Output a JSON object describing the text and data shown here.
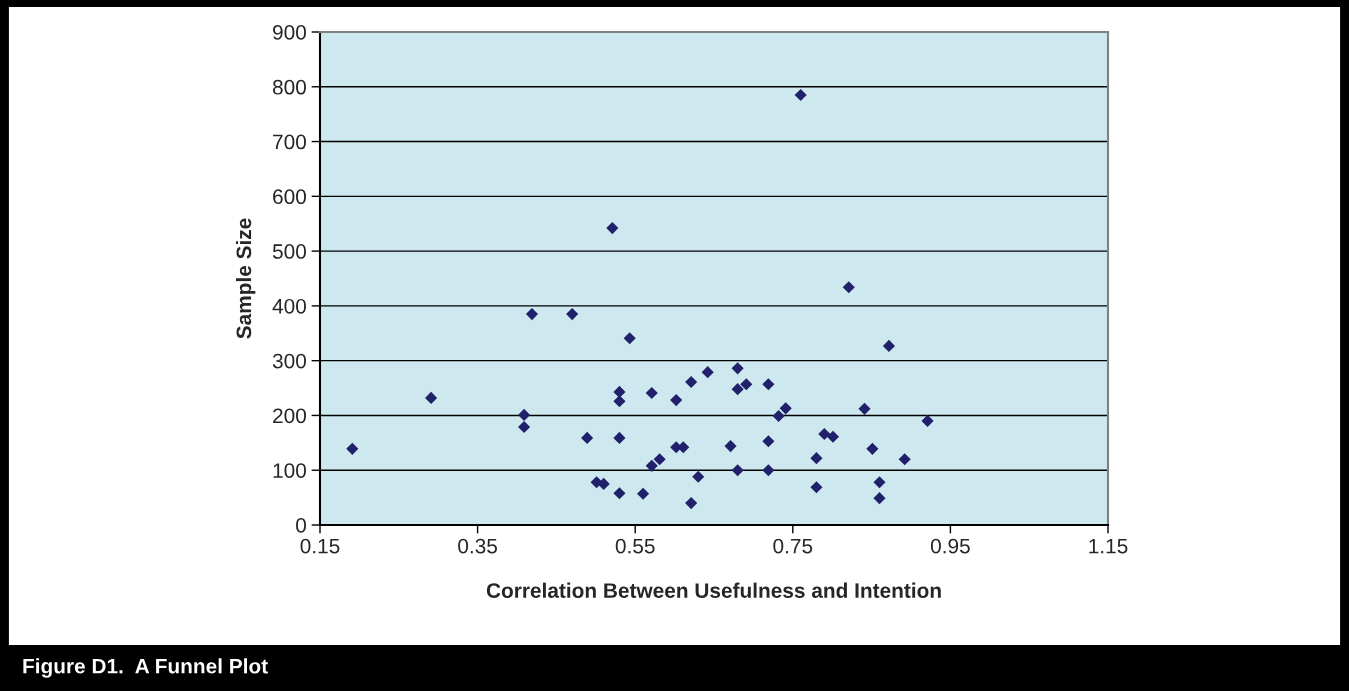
{
  "chart_data": {
    "type": "scatter",
    "xlabel": "Correlation Between Usefulness and Intention",
    "ylabel": "Sample Size",
    "annotations": [
      "Figure D1.  A Funnel Plot"
    ],
    "series": [
      {
        "color": "#20206b",
        "marker": "diamond",
        "x": [
          0.191,
          0.291,
          0.409,
          0.409,
          0.419,
          0.47,
          0.521,
          0.543,
          0.53,
          0.53,
          0.571,
          0.602,
          0.621,
          0.642,
          0.489,
          0.53,
          0.602,
          0.611,
          0.581,
          0.571,
          0.63,
          0.501,
          0.51,
          0.53,
          0.56,
          0.621,
          0.76,
          0.821,
          0.872,
          0.68,
          0.68,
          0.691,
          0.719,
          0.741,
          0.732,
          0.841,
          0.921,
          0.671,
          0.719,
          0.79,
          0.801,
          0.851,
          0.78,
          0.892,
          0.68,
          0.719,
          0.78,
          0.86,
          0.86
        ],
        "values": [
          139,
          232,
          201,
          179,
          385,
          385,
          542,
          341,
          243,
          226,
          241,
          228,
          261,
          279,
          159,
          159,
          142,
          142,
          120,
          108,
          88,
          78,
          75,
          58,
          57,
          40,
          785,
          434,
          327,
          286,
          248,
          257,
          257,
          213,
          199,
          212,
          190,
          144,
          153,
          166,
          161,
          139,
          122,
          120,
          100,
          100,
          69,
          78,
          49
        ]
      }
    ],
    "xlim": [
      0.15,
      1.15
    ],
    "xticks": [
      0.15,
      0.35,
      0.55,
      0.75,
      0.95,
      1.15
    ],
    "ylim": [
      0,
      900
    ],
    "yticks": [
      0,
      100,
      200,
      300,
      400,
      500,
      600,
      700,
      800,
      900
    ],
    "grid": "y",
    "legend": false
  }
}
